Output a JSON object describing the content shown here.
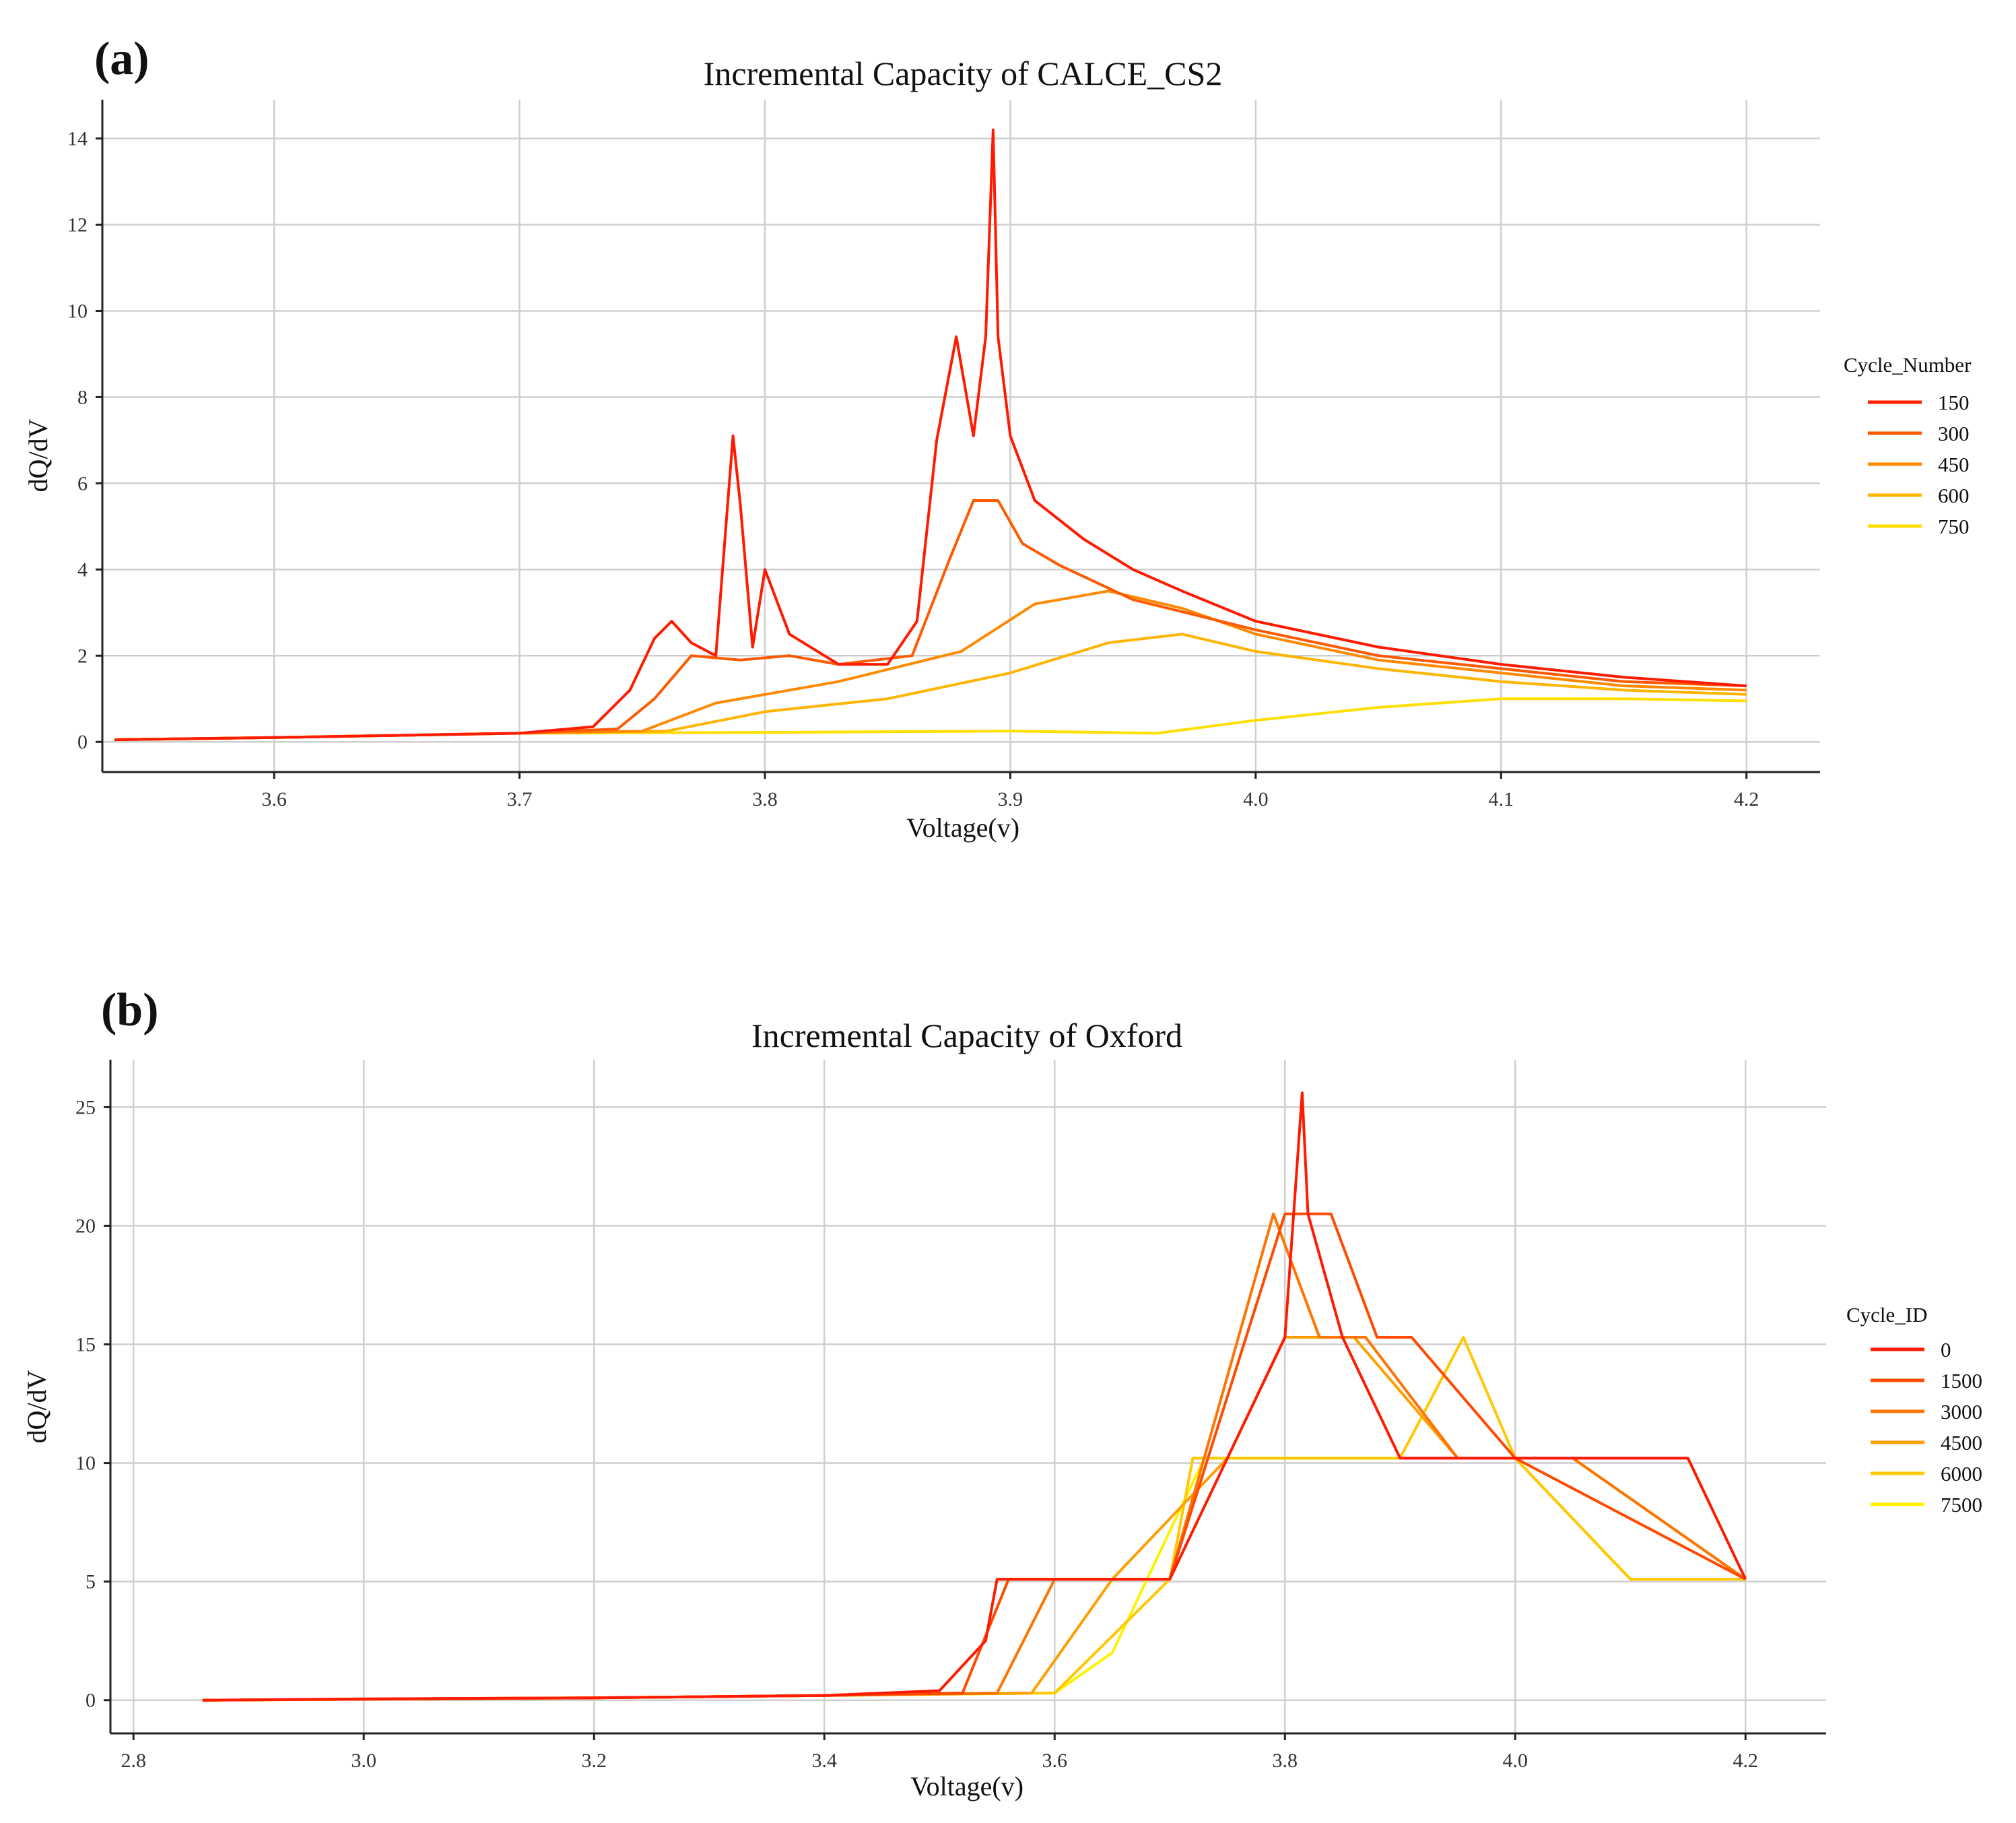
{
  "chart_data": [
    {
      "panel_label": "(a)",
      "type": "line",
      "title": "Incremental Capacity of CALCE_CS2",
      "xlabel": "Voltage(v)",
      "ylabel": "dQ/dV",
      "xlim": [
        3.53,
        4.23
      ],
      "ylim": [
        -0.7,
        14.9
      ],
      "xticks": [
        3.6,
        3.7,
        3.8,
        3.9,
        4.0,
        4.1,
        4.2
      ],
      "xtick_labels": [
        "3.6",
        "3.7",
        "3.8",
        "3.9",
        "4.0",
        "4.1",
        "4.2"
      ],
      "yticks": [
        0,
        2,
        4,
        6,
        8,
        10,
        12,
        14
      ],
      "ytick_labels": [
        "0",
        "2",
        "4",
        "6",
        "8",
        "10",
        "12",
        "14"
      ],
      "grid": true,
      "legend": {
        "title": "Cycle_Number",
        "placement": "right",
        "entries": [
          {
            "label": "150",
            "color": "#ff2000"
          },
          {
            "label": "300",
            "color": "#ff5a00"
          },
          {
            "label": "450",
            "color": "#ff8a00"
          },
          {
            "label": "600",
            "color": "#ffb400"
          },
          {
            "label": "750",
            "color": "#ffde00"
          }
        ]
      },
      "series": [
        {
          "name": "150",
          "color": "#ff1a00",
          "x": [
            3.535,
            3.6,
            3.7,
            3.73,
            3.745,
            3.755,
            3.762,
            3.77,
            3.78,
            3.787,
            3.79,
            3.795,
            3.8,
            3.81,
            3.83,
            3.85,
            3.862,
            3.87,
            3.878,
            3.885,
            3.89,
            3.893,
            3.895,
            3.9,
            3.91,
            3.93,
            3.95,
            3.97,
            4.0,
            4.05,
            4.1,
            4.15,
            4.2
          ],
          "y": [
            0.05,
            0.1,
            0.2,
            0.35,
            1.2,
            2.4,
            2.8,
            2.3,
            2.0,
            7.1,
            5.5,
            2.2,
            4.0,
            2.5,
            1.8,
            1.8,
            2.8,
            7.0,
            9.4,
            7.1,
            9.4,
            14.2,
            9.4,
            7.1,
            5.6,
            4.7,
            4.0,
            3.5,
            2.8,
            2.2,
            1.8,
            1.5,
            1.3
          ]
        },
        {
          "name": "300",
          "color": "#ff5a00",
          "x": [
            3.535,
            3.6,
            3.7,
            3.74,
            3.755,
            3.77,
            3.79,
            3.81,
            3.83,
            3.86,
            3.875,
            3.885,
            3.895,
            3.905,
            3.92,
            3.95,
            4.0,
            4.05,
            4.1,
            4.15,
            4.2
          ],
          "y": [
            0.05,
            0.1,
            0.2,
            0.3,
            1.0,
            2.0,
            1.9,
            2.0,
            1.8,
            2.0,
            4.2,
            5.6,
            5.6,
            4.6,
            4.1,
            3.3,
            2.6,
            2.0,
            1.7,
            1.4,
            1.3
          ]
        },
        {
          "name": "450",
          "color": "#ff8a00",
          "x": [
            3.535,
            3.6,
            3.7,
            3.75,
            3.78,
            3.83,
            3.88,
            3.91,
            3.94,
            3.97,
            4.0,
            4.05,
            4.1,
            4.15,
            4.2
          ],
          "y": [
            0.05,
            0.1,
            0.2,
            0.25,
            0.9,
            1.4,
            2.1,
            3.2,
            3.5,
            3.1,
            2.5,
            1.9,
            1.6,
            1.3,
            1.2
          ]
        },
        {
          "name": "600",
          "color": "#ffb400",
          "x": [
            3.535,
            3.6,
            3.7,
            3.76,
            3.8,
            3.85,
            3.9,
            3.94,
            3.97,
            4.0,
            4.05,
            4.1,
            4.15,
            4.2
          ],
          "y": [
            0.05,
            0.1,
            0.2,
            0.25,
            0.7,
            1.0,
            1.6,
            2.3,
            2.5,
            2.1,
            1.7,
            1.4,
            1.2,
            1.1
          ]
        },
        {
          "name": "750",
          "color": "#ffde00",
          "x": [
            3.535,
            3.6,
            3.7,
            3.8,
            3.9,
            3.96,
            4.0,
            4.05,
            4.1,
            4.15,
            4.2
          ],
          "y": [
            0.05,
            0.1,
            0.2,
            0.22,
            0.25,
            0.2,
            0.5,
            0.8,
            1.0,
            1.0,
            0.95
          ]
        }
      ]
    },
    {
      "panel_label": "(b)",
      "type": "line",
      "title": "Incremental Capacity of Oxford",
      "xlabel": "Voltage(v)",
      "ylabel": "dQ/dV",
      "xlim": [
        2.78,
        4.27
      ],
      "ylim": [
        -1.4,
        27.0
      ],
      "xticks": [
        2.8,
        3.0,
        3.2,
        3.4,
        3.6,
        3.8,
        4.0,
        4.2
      ],
      "xtick_labels": [
        "2.8",
        "3.0",
        "3.2",
        "3.4",
        "3.6",
        "3.8",
        "4.0",
        "4.2"
      ],
      "yticks": [
        0,
        5,
        10,
        15,
        20,
        25
      ],
      "ytick_labels": [
        "0",
        "5",
        "10",
        "15",
        "20",
        "25"
      ],
      "grid": true,
      "legend": {
        "title": "Cycle_ID",
        "placement": "right",
        "entries": [
          {
            "label": "0",
            "color": "#ff1a00"
          },
          {
            "label": "1500",
            "color": "#ff4a00"
          },
          {
            "label": "3000",
            "color": "#ff7400"
          },
          {
            "label": "4500",
            "color": "#ff9e00"
          },
          {
            "label": "6000",
            "color": "#ffc800"
          },
          {
            "label": "7500",
            "color": "#fff200"
          }
        ]
      },
      "series": [
        {
          "name": "0",
          "color": "#ff1a00",
          "x": [
            2.86,
            3.0,
            3.2,
            3.4,
            3.5,
            3.54,
            3.55,
            3.6,
            3.7,
            3.8,
            3.815,
            3.82,
            3.85,
            3.9,
            4.0,
            4.1,
            4.15,
            4.2
          ],
          "y": [
            0.0,
            0.05,
            0.1,
            0.2,
            0.4,
            2.5,
            5.1,
            5.1,
            5.1,
            15.3,
            25.6,
            20.5,
            15.3,
            10.2,
            10.2,
            10.2,
            10.2,
            5.1
          ]
        },
        {
          "name": "1500",
          "color": "#ff4a00",
          "x": [
            2.86,
            3.0,
            3.2,
            3.4,
            3.52,
            3.56,
            3.6,
            3.7,
            3.8,
            3.82,
            3.84,
            3.88,
            3.91,
            4.0,
            4.2
          ],
          "y": [
            0.0,
            0.05,
            0.1,
            0.2,
            0.3,
            5.1,
            5.1,
            5.1,
            20.5,
            20.5,
            20.5,
            15.3,
            15.3,
            10.2,
            5.1
          ]
        },
        {
          "name": "3000",
          "color": "#ff7400",
          "x": [
            2.86,
            3.2,
            3.4,
            3.55,
            3.6,
            3.7,
            3.79,
            3.83,
            3.87,
            3.95,
            4.05,
            4.2
          ],
          "y": [
            0.0,
            0.1,
            0.2,
            0.3,
            5.1,
            5.1,
            20.5,
            15.3,
            15.3,
            10.2,
            10.2,
            5.1
          ]
        },
        {
          "name": "4500",
          "color": "#ff9e00",
          "x": [
            2.86,
            3.2,
            3.4,
            3.58,
            3.65,
            3.75,
            3.8,
            3.86,
            3.95,
            4.05,
            4.2
          ],
          "y": [
            0.0,
            0.1,
            0.2,
            0.3,
            5.1,
            10.2,
            15.3,
            15.3,
            10.2,
            10.2,
            5.1
          ]
        },
        {
          "name": "6000",
          "color": "#ffc800",
          "x": [
            2.86,
            3.2,
            3.4,
            3.6,
            3.7,
            3.72,
            3.8,
            3.9,
            3.955,
            4.0,
            4.1,
            4.2
          ],
          "y": [
            0.0,
            0.1,
            0.2,
            0.3,
            5.1,
            10.2,
            10.2,
            10.2,
            15.3,
            10.2,
            5.1,
            5.1
          ]
        },
        {
          "name": "7500",
          "color": "#fff200",
          "x": [
            2.86,
            3.2,
            3.4,
            3.6,
            3.65,
            3.73,
            3.8,
            3.9,
            4.0,
            4.1,
            4.2
          ],
          "y": [
            0.0,
            0.1,
            0.2,
            0.3,
            2.0,
            10.2,
            10.2,
            10.2,
            10.2,
            5.1,
            5.1
          ]
        }
      ]
    }
  ]
}
